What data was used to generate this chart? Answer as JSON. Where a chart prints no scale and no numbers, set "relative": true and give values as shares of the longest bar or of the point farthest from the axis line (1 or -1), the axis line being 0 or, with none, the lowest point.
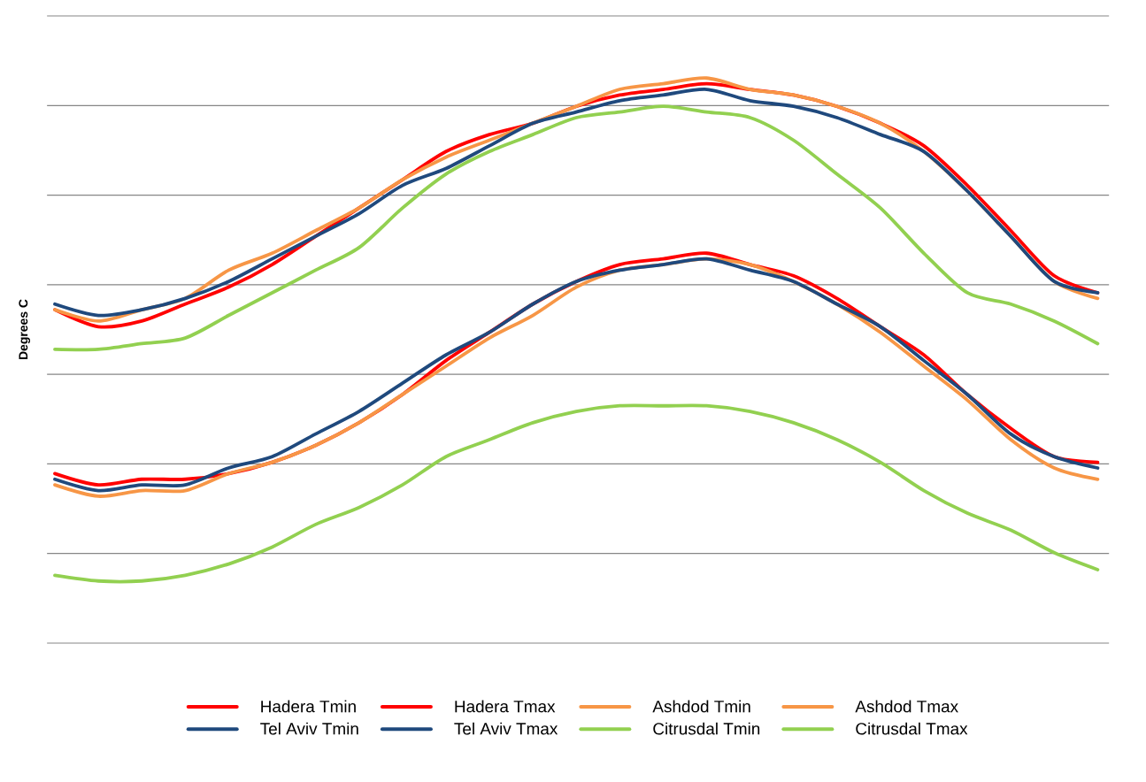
{
  "chart_data": {
    "type": "line",
    "relative": true,
    "ylabel": "Degrees C",
    "grid": "y",
    "legend": "bottom",
    "marker": "none",
    "line_style": "solid",
    "categories": [
      null,
      null,
      null,
      null,
      null,
      null,
      null,
      null,
      null,
      null,
      null,
      null,
      null,
      null,
      null,
      null,
      null,
      null,
      null,
      null,
      null,
      null,
      null,
      null,
      null
    ],
    "series": [
      {
        "name": "Hadera Tmin",
        "color": "#ff0000",
        "values": [
          0.3,
          0.28,
          0.29,
          0.29,
          0.3,
          0.32,
          0.35,
          0.39,
          0.44,
          0.5,
          0.55,
          0.6,
          0.64,
          0.67,
          0.68,
          0.69,
          0.67,
          0.65,
          0.61,
          0.56,
          0.51,
          0.44,
          0.38,
          0.33,
          0.32
        ]
      },
      {
        "name": "Hadera Tmax",
        "color": "#ff0000",
        "values": [
          0.59,
          0.56,
          0.57,
          0.6,
          0.63,
          0.67,
          0.72,
          0.77,
          0.82,
          0.87,
          0.9,
          0.92,
          0.95,
          0.97,
          0.98,
          0.99,
          0.98,
          0.97,
          0.95,
          0.92,
          0.88,
          0.81,
          0.73,
          0.65,
          0.62
        ]
      },
      {
        "name": "Ashdod Tmin",
        "color": "#f79646",
        "values": [
          0.28,
          0.26,
          0.27,
          0.27,
          0.3,
          0.32,
          0.35,
          0.39,
          0.44,
          0.49,
          0.54,
          0.58,
          0.63,
          0.66,
          0.67,
          0.68,
          0.67,
          0.64,
          0.6,
          0.55,
          0.49,
          0.43,
          0.36,
          0.31,
          0.29
        ]
      },
      {
        "name": "Ashdod Tmax",
        "color": "#f79646",
        "values": [
          0.59,
          0.57,
          0.59,
          0.61,
          0.66,
          0.69,
          0.73,
          0.77,
          0.82,
          0.86,
          0.89,
          0.92,
          0.95,
          0.98,
          0.99,
          1,
          0.98,
          0.97,
          0.95,
          0.92,
          0.87,
          0.8,
          0.72,
          0.64,
          0.61
        ]
      },
      {
        "name": "Tel Aviv Tmin",
        "color": "#1f497d",
        "values": [
          0.29,
          0.27,
          0.28,
          0.28,
          0.31,
          0.33,
          0.37,
          0.41,
          0.46,
          0.51,
          0.55,
          0.6,
          0.64,
          0.66,
          0.67,
          0.68,
          0.66,
          0.64,
          0.6,
          0.56,
          0.5,
          0.44,
          0.37,
          0.33,
          0.31
        ]
      },
      {
        "name": "Tel Aviv Tmax",
        "color": "#1f497d",
        "values": [
          0.6,
          0.58,
          0.59,
          0.61,
          0.64,
          0.68,
          0.72,
          0.76,
          0.81,
          0.84,
          0.88,
          0.92,
          0.94,
          0.96,
          0.97,
          0.98,
          0.96,
          0.95,
          0.93,
          0.9,
          0.87,
          0.8,
          0.72,
          0.64,
          0.62
        ]
      },
      {
        "name": "Citrusdal Tmin",
        "color": "#92d050",
        "values": [
          0.12,
          0.11,
          0.11,
          0.12,
          0.14,
          0.17,
          0.21,
          0.24,
          0.28,
          0.33,
          0.36,
          0.39,
          0.41,
          0.42,
          0.42,
          0.42,
          0.41,
          0.39,
          0.36,
          0.32,
          0.27,
          0.23,
          0.2,
          0.16,
          0.13
        ]
      },
      {
        "name": "Citrusdal Tmax",
        "color": "#92d050",
        "values": [
          0.52,
          0.52,
          0.53,
          0.54,
          0.58,
          0.62,
          0.66,
          0.7,
          0.77,
          0.83,
          0.87,
          0.9,
          0.93,
          0.94,
          0.95,
          0.94,
          0.93,
          0.89,
          0.83,
          0.77,
          0.69,
          0.62,
          0.6,
          0.57,
          0.53
        ]
      }
    ]
  }
}
